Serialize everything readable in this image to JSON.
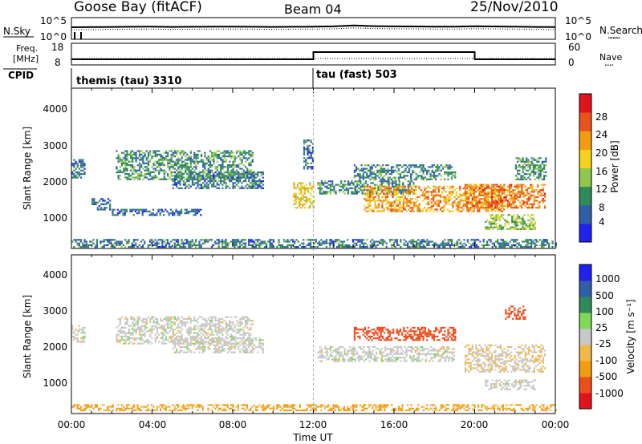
{
  "header": {
    "station": "Goose Bay (fitACF)",
    "beam": "Beam 04",
    "date": "25/Nov/2010"
  },
  "noise_panel": {
    "left_label": "N.Sky",
    "right_label": "N.Search",
    "right_legend": "........",
    "left_ticks": [
      "10^5",
      "10^0"
    ],
    "right_ticks": [
      "10^5",
      "10^0"
    ]
  },
  "freq_panel": {
    "left_label_1": "Freq.",
    "left_label_2": "[MHz]",
    "right_label": "Nave",
    "right_legend": "....",
    "left_ticks": [
      "18",
      "8"
    ],
    "right_ticks": [
      "60",
      "0"
    ],
    "cpid_label": "CPID",
    "cpid_1": "themis (tau) 3310",
    "cpid_2": "tau (fast) 503"
  },
  "time_axis": {
    "label": "Time UT",
    "ticks": [
      "00:00",
      "04:00",
      "08:00",
      "12:00",
      "16:00",
      "20:00",
      "00:00"
    ]
  },
  "power_panel": {
    "ylabel": "Slant Range [km]",
    "yticks": [
      "4000",
      "3000",
      "2000",
      "1000"
    ],
    "colorbar_label": "Power [dB]",
    "colorbar_ticks": [
      "28",
      "24",
      "20",
      "16",
      "12",
      "8",
      "4"
    ]
  },
  "velocity_panel": {
    "ylabel": "Slant Range [km]",
    "yticks": [
      "4000",
      "3000",
      "2000",
      "1000"
    ],
    "colorbar_label": "Velocity [m s⁻¹]",
    "colorbar_ticks": [
      "1000",
      "500",
      "100",
      "25",
      "-25",
      "-100",
      "-500",
      "-1000"
    ]
  },
  "chart_data": [
    {
      "type": "line",
      "panel": "noise",
      "xlabel": "",
      "ylabel": "N.Sky",
      "xlim": [
        0,
        24
      ],
      "ylim": [
        1,
        100000
      ],
      "yscale": "log",
      "series": [
        {
          "x": [
            0,
            1,
            2,
            3,
            4,
            5,
            6,
            7,
            8,
            9,
            10,
            11,
            12,
            13,
            14,
            15,
            16,
            17,
            18,
            19,
            20,
            21,
            22,
            23,
            24
          ],
          "values": [
            800,
            900,
            1000,
            1100,
            1200,
            1000,
            1100,
            1200,
            1300,
            1100,
            1000,
            1100,
            1200,
            1500,
            3000,
            1800,
            1500,
            1400,
            1300,
            1200,
            1600,
            1400,
            1200,
            1000,
            900
          ]
        }
      ]
    },
    {
      "type": "line",
      "panel": "frequency",
      "xlabel": "",
      "ylabel": "Freq. [MHz]",
      "xlim": [
        0,
        24
      ],
      "ylim": [
        8,
        18
      ],
      "series": [
        {
          "x": [
            0,
            12,
            12,
            20,
            20,
            24
          ],
          "values": [
            10,
            10,
            14.5,
            14.5,
            10,
            10
          ]
        }
      ]
    },
    {
      "type": "heatmap",
      "panel": "power",
      "title": "Beam 04",
      "xlabel": "Time UT",
      "ylabel": "Slant Range [km]",
      "xlim": [
        0,
        24
      ],
      "ylim": [
        180,
        4600
      ],
      "colorbar": {
        "label": "Power [dB]",
        "range": [
          0,
          30
        ]
      },
      "regions": [
        {
          "t": [
            0,
            24
          ],
          "range": [
            200,
            400
          ],
          "value": 8
        },
        {
          "t": [
            0,
            0.7
          ],
          "range": [
            2150,
            2650
          ],
          "value": 7
        },
        {
          "t": [
            1,
            1.9
          ],
          "range": [
            1250,
            1550
          ],
          "value": 6
        },
        {
          "t": [
            2,
            6.5
          ],
          "range": [
            1100,
            1250
          ],
          "value": 6
        },
        {
          "t": [
            2.2,
            9
          ],
          "range": [
            2100,
            2900
          ],
          "value": 10
        },
        {
          "t": [
            5,
            9.5
          ],
          "range": [
            1850,
            2300
          ],
          "value": 8
        },
        {
          "t": [
            11,
            12
          ],
          "range": [
            1300,
            2000
          ],
          "value": 18
        },
        {
          "t": [
            11.5,
            12
          ],
          "range": [
            2400,
            3200
          ],
          "value": 8
        },
        {
          "t": [
            12.2,
            17
          ],
          "range": [
            1700,
            2050
          ],
          "value": 9
        },
        {
          "t": [
            14.5,
            21.5
          ],
          "range": [
            1200,
            1900
          ],
          "value": 22
        },
        {
          "t": [
            14,
            19
          ],
          "range": [
            2100,
            2500
          ],
          "value": 9
        },
        {
          "t": [
            19.5,
            23.5
          ],
          "range": [
            1300,
            1950
          ],
          "value": 24
        },
        {
          "t": [
            20.5,
            23
          ],
          "range": [
            700,
            1100
          ],
          "value": 14
        },
        {
          "t": [
            22,
            23.5
          ],
          "range": [
            2100,
            2700
          ],
          "value": 10
        }
      ]
    },
    {
      "type": "heatmap",
      "panel": "velocity",
      "xlabel": "Time UT",
      "ylabel": "Slant Range [km]",
      "xlim": [
        0,
        24
      ],
      "ylim": [
        180,
        4600
      ],
      "colorbar": {
        "label": "Velocity [m s⁻¹]",
        "range": [
          -1000,
          1000
        ]
      },
      "regions": [
        {
          "t": [
            0,
            24
          ],
          "range": [
            200,
            400
          ],
          "value": -60
        },
        {
          "t": [
            0,
            0.7
          ],
          "range": [
            2150,
            2650
          ],
          "value": 0
        },
        {
          "t": [
            2.2,
            9
          ],
          "range": [
            2100,
            2900
          ],
          "value": 0
        },
        {
          "t": [
            5,
            9.5
          ],
          "range": [
            1850,
            2300
          ],
          "value": 0
        },
        {
          "t": [
            12.2,
            19
          ],
          "range": [
            1600,
            2050
          ],
          "value": 0
        },
        {
          "t": [
            14,
            19
          ],
          "range": [
            2200,
            2600
          ],
          "value": -150
        },
        {
          "t": [
            19.5,
            23.5
          ],
          "range": [
            1300,
            2100
          ],
          "value": -20
        },
        {
          "t": [
            20.5,
            23
          ],
          "range": [
            800,
            1100
          ],
          "value": 0
        },
        {
          "t": [
            21.5,
            22.5
          ],
          "range": [
            2800,
            3200
          ],
          "value": -300
        }
      ]
    }
  ],
  "colors": {
    "power_scale": [
      "#2121ee",
      "#2f5fa8",
      "#2e8b57",
      "#8fc84a",
      "#f2d21b",
      "#f39c12",
      "#e8531c",
      "#e2141b"
    ],
    "velocity_scale": [
      "#e2141b",
      "#ee4d1c",
      "#f39c12",
      "#f3b84b",
      "#c8c8c8",
      "#7ed957",
      "#2e8b57",
      "#2f5fa8",
      "#2121ee"
    ]
  }
}
